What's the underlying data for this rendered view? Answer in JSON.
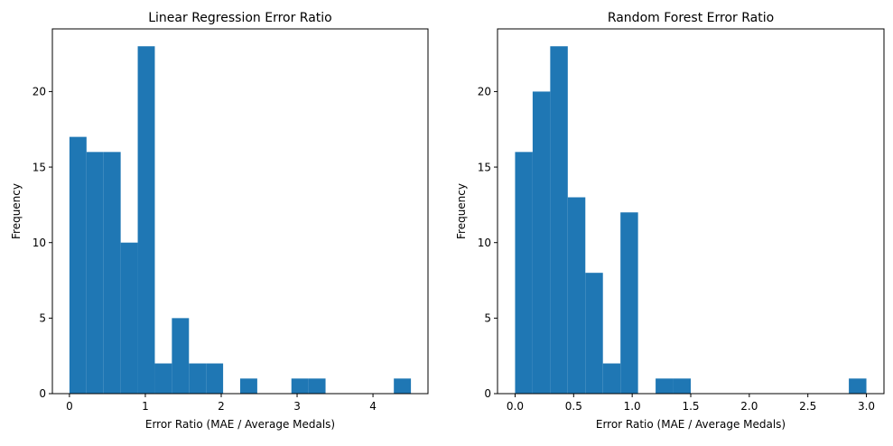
{
  "chart_data": [
    {
      "type": "bar",
      "title": "Linear Regression Error Ratio",
      "xlabel": "Error Ratio (MAE / Average Medals)",
      "ylabel": "Frequency",
      "xlim": [
        -0.225,
        4.725
      ],
      "ylim": [
        0,
        24.15
      ],
      "xticks": [
        0,
        1,
        2,
        3,
        4
      ],
      "xtick_labels": [
        "0",
        "1",
        "2",
        "3",
        "4"
      ],
      "yticks": [
        0,
        5,
        10,
        15,
        20
      ],
      "ytick_labels": [
        "0",
        "5",
        "10",
        "15",
        "20"
      ],
      "bar_color": "#1f77b4",
      "bin_edges": [
        0.0,
        0.225,
        0.45,
        0.675,
        0.9,
        1.125,
        1.35,
        1.575,
        1.8,
        2.025,
        2.25,
        2.475,
        2.7,
        2.925,
        3.15,
        3.375,
        3.6,
        3.825,
        4.05,
        4.275,
        4.5
      ],
      "values": [
        17,
        16,
        16,
        10,
        23,
        2,
        5,
        2,
        2,
        0,
        1,
        0,
        0,
        1,
        1,
        0,
        0,
        0,
        0,
        1
      ]
    },
    {
      "type": "bar",
      "title": "Random Forest Error Ratio",
      "xlabel": "Error Ratio (MAE / Average Medals)",
      "ylabel": "Frequency",
      "xlim": [
        -0.15,
        3.15
      ],
      "ylim": [
        0,
        24.15
      ],
      "xticks": [
        0.0,
        0.5,
        1.0,
        1.5,
        2.0,
        2.5,
        3.0
      ],
      "xtick_labels": [
        "0.0",
        "0.5",
        "1.0",
        "1.5",
        "2.0",
        "2.5",
        "3.0"
      ],
      "yticks": [
        0,
        5,
        10,
        15,
        20
      ],
      "ytick_labels": [
        "0",
        "5",
        "10",
        "15",
        "20"
      ],
      "bar_color": "#1f77b4",
      "bin_edges": [
        0.0,
        0.15,
        0.3,
        0.45,
        0.6,
        0.75,
        0.9,
        1.05,
        1.2,
        1.35,
        1.5,
        1.65,
        1.8,
        1.95,
        2.1,
        2.25,
        2.4,
        2.55,
        2.7,
        2.85,
        3.0
      ],
      "values": [
        16,
        20,
        23,
        13,
        8,
        2,
        12,
        0,
        1,
        1,
        0,
        0,
        0,
        0,
        0,
        0,
        0,
        0,
        0,
        1
      ]
    }
  ]
}
